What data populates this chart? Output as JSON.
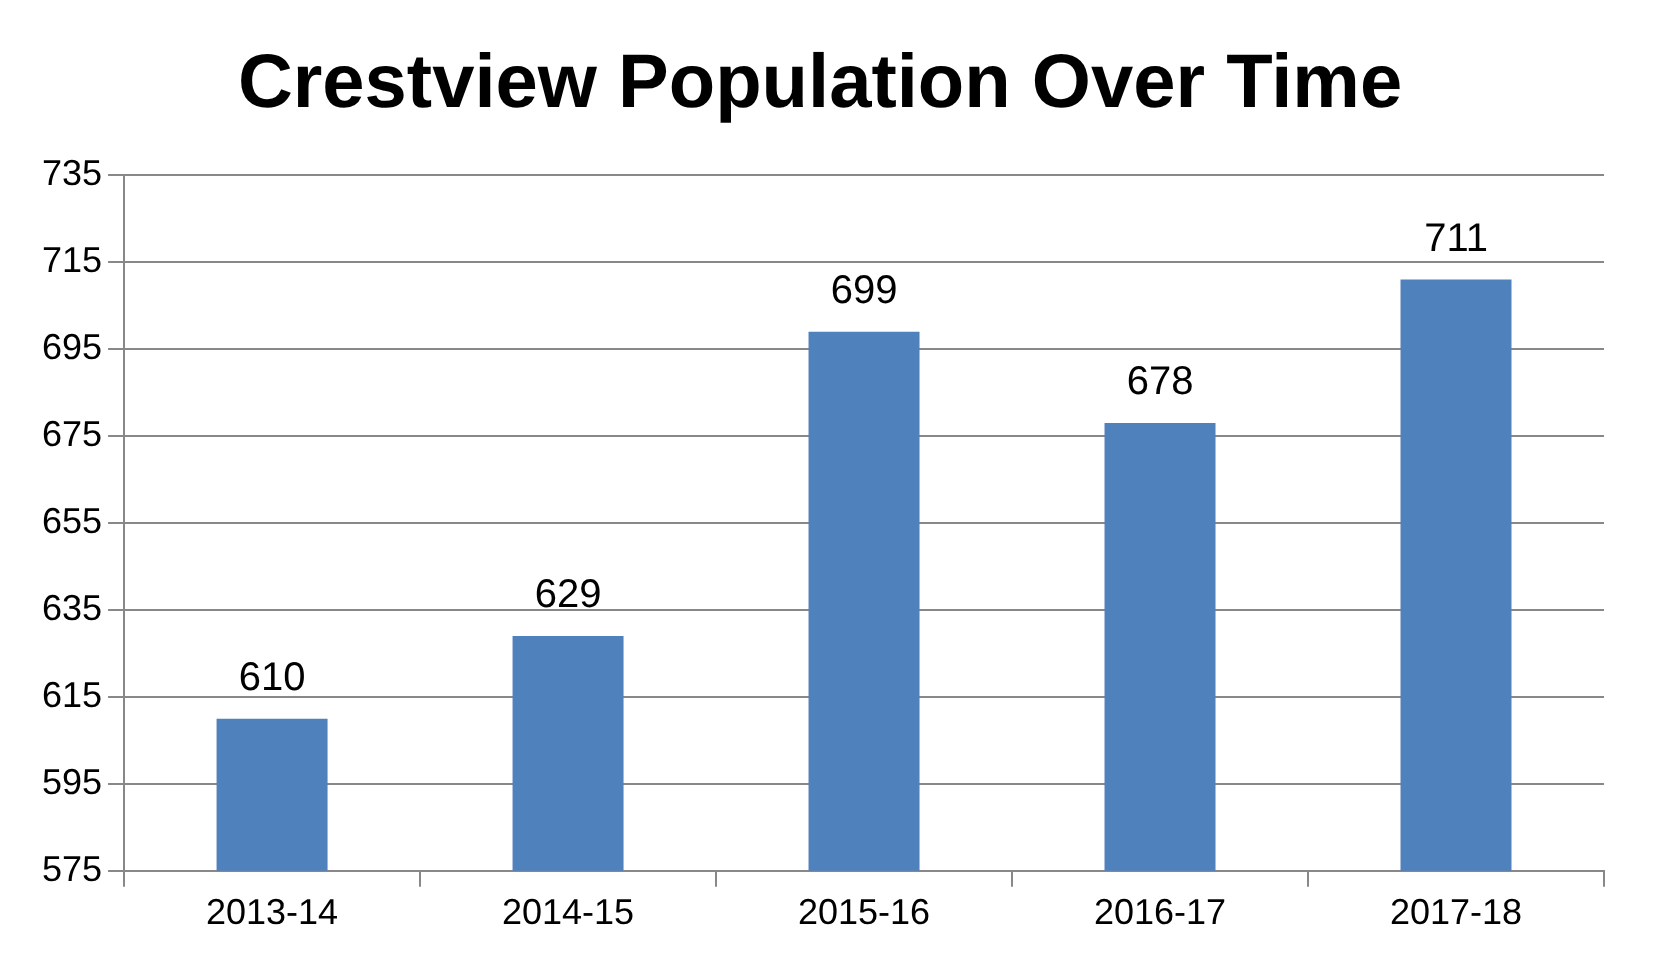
{
  "chart_data": {
    "type": "bar",
    "title": "Crestview Population Over Time",
    "categories": [
      "2013-14",
      "2014-15",
      "2015-16",
      "2016-17",
      "2017-18"
    ],
    "values": [
      610,
      629,
      699,
      678,
      711
    ],
    "color": "#4f81bd",
    "ylim": [
      575,
      735
    ],
    "yticks": [
      575,
      595,
      615,
      635,
      655,
      675,
      695,
      715,
      735
    ],
    "grid": "y",
    "data_labels": true,
    "legend": false
  }
}
